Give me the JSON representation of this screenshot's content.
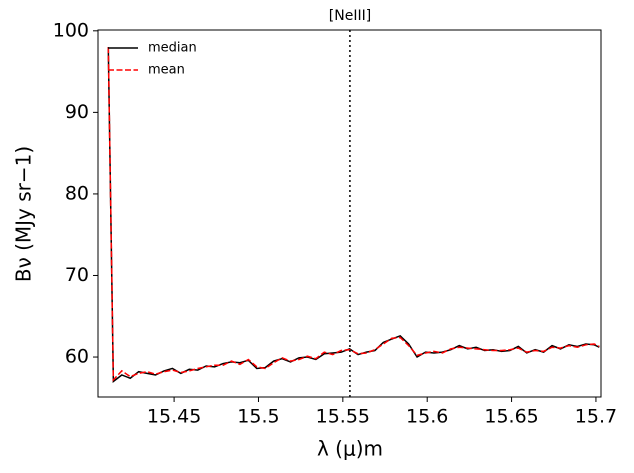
{
  "chart_data": {
    "type": "line",
    "title": "[NeIII]",
    "xlabel": "λ (μ)m",
    "ylabel": "Bν (MJy sr−1)",
    "x": [
      15.411,
      15.414,
      15.419,
      15.424,
      15.429,
      15.434,
      15.439,
      15.444,
      15.449,
      15.454,
      15.459,
      15.464,
      15.469,
      15.474,
      15.479,
      15.484,
      15.489,
      15.494,
      15.499,
      15.504,
      15.509,
      15.514,
      15.519,
      15.524,
      15.529,
      15.534,
      15.539,
      15.544,
      15.549,
      15.554,
      15.559,
      15.564,
      15.569,
      15.574,
      15.579,
      15.584,
      15.589,
      15.594,
      15.599,
      15.604,
      15.609,
      15.614,
      15.619,
      15.624,
      15.629,
      15.634,
      15.639,
      15.644,
      15.649,
      15.654,
      15.659,
      15.664,
      15.669,
      15.674,
      15.679,
      15.684,
      15.689,
      15.694,
      15.699,
      15.702
    ],
    "series": [
      {
        "name": "median",
        "color": "#000000",
        "dash": false,
        "values": [
          98,
          57.0,
          57.8,
          57.4,
          58.2,
          58.0,
          57.8,
          58.3,
          58.6,
          58.0,
          58.5,
          58.4,
          58.9,
          58.8,
          59.2,
          59.4,
          59.3,
          59.6,
          58.6,
          58.7,
          59.5,
          59.8,
          59.4,
          59.9,
          60.0,
          59.7,
          60.4,
          60.5,
          60.6,
          61.0,
          60.3,
          60.6,
          60.8,
          61.8,
          62.2,
          62.6,
          61.6,
          60.0,
          60.6,
          60.5,
          60.6,
          60.9,
          61.4,
          61.0,
          61.2,
          60.8,
          60.9,
          60.7,
          60.8,
          61.3,
          60.5,
          60.9,
          60.6,
          61.4,
          61.0,
          61.5,
          61.3,
          61.6,
          61.5,
          61.2
        ]
      },
      {
        "name": "mean",
        "color": "#ff0000",
        "dash": true,
        "values": [
          98,
          57.2,
          58.3,
          57.6,
          58.0,
          58.2,
          57.9,
          58.2,
          58.4,
          58.1,
          58.3,
          58.6,
          58.8,
          59.0,
          59.0,
          59.5,
          59.1,
          59.7,
          58.8,
          58.6,
          59.3,
          59.9,
          59.5,
          59.7,
          60.1,
          59.8,
          60.6,
          60.3,
          60.8,
          60.9,
          60.4,
          60.5,
          60.9,
          61.6,
          62.3,
          62.4,
          61.4,
          60.2,
          60.5,
          60.7,
          60.5,
          61.0,
          61.2,
          61.1,
          61.0,
          60.9,
          60.8,
          60.8,
          60.9,
          61.1,
          60.6,
          60.8,
          60.7,
          61.2,
          61.1,
          61.4,
          61.2,
          61.5,
          61.6,
          61.3
        ]
      }
    ],
    "vline": 15.5542,
    "xlim": [
      15.4049,
      15.703
    ],
    "ylim": [
      55.1,
      100.1
    ],
    "xticks": [
      15.45,
      15.5,
      15.55,
      15.6,
      15.65,
      15.7
    ],
    "yticks": [
      60,
      70,
      80,
      90,
      100
    ],
    "legend": "upper left"
  }
}
